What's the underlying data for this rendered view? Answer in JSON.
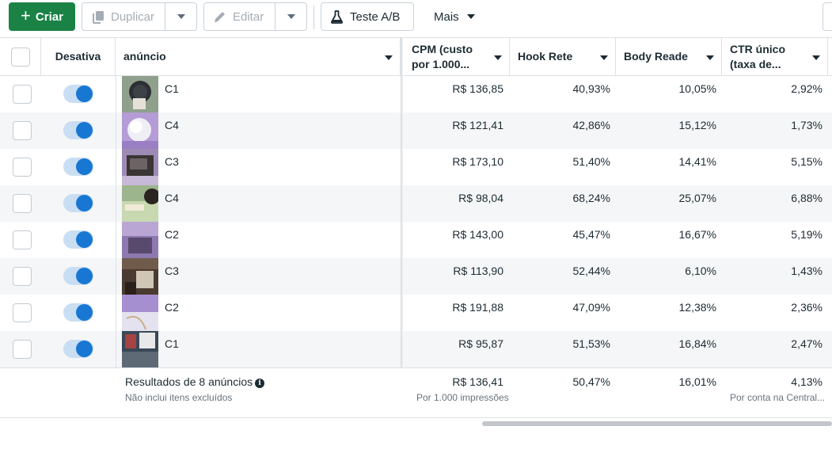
{
  "toolbar": {
    "create_label": "Criar",
    "duplicate_label": "Duplicar",
    "edit_label": "Editar",
    "ab_test_label": "Teste A/B",
    "more_label": "Mais"
  },
  "table": {
    "headers": {
      "toggle": "Desativa",
      "ad": "anúncio",
      "cpm_line1": "CPM (custo",
      "cpm_line2": "por 1.000...",
      "hook": "Hook Rete",
      "body": "Body Reade",
      "ctr_line1": "CTR único",
      "ctr_line2": "(taxa de..."
    },
    "rows": [
      {
        "name": "C1",
        "cpm": "R$ 136,85",
        "hook": "40,93%",
        "body": "10,05%",
        "ctr": "2,92%",
        "active": true
      },
      {
        "name": "C4",
        "cpm": "R$ 121,41",
        "hook": "42,86%",
        "body": "15,12%",
        "ctr": "1,73%",
        "active": true
      },
      {
        "name": "C3",
        "cpm": "R$ 173,10",
        "hook": "51,40%",
        "body": "14,41%",
        "ctr": "5,15%",
        "active": true
      },
      {
        "name": "C4",
        "cpm": "R$ 98,04",
        "hook": "68,24%",
        "body": "25,07%",
        "ctr": "6,88%",
        "active": true
      },
      {
        "name": "C2",
        "cpm": "R$ 143,00",
        "hook": "45,47%",
        "body": "16,67%",
        "ctr": "5,19%",
        "active": true
      },
      {
        "name": "C3",
        "cpm": "R$ 113,90",
        "hook": "52,44%",
        "body": "6,10%",
        "ctr": "1,43%",
        "active": true
      },
      {
        "name": "C2",
        "cpm": "R$ 191,88",
        "hook": "47,09%",
        "body": "12,38%",
        "ctr": "2,36%",
        "active": true
      },
      {
        "name": "C1",
        "cpm": "R$ 95,87",
        "hook": "51,53%",
        "body": "16,84%",
        "ctr": "2,47%",
        "active": true
      }
    ],
    "summary": {
      "results": "Resultados de 8 anúncios",
      "results_note": "Não inclui itens excluídos",
      "cpm": "R$ 136,41",
      "cpm_note": "Por 1.000 impressões",
      "hook": "50,47%",
      "body": "16,01%",
      "ctr": "4,13%",
      "ctr_note": "Por conta na Central..."
    }
  },
  "colors": {
    "primary_green": "#1a8245",
    "toggle_blue": "#1877d2",
    "toggle_track": "#c9def3",
    "row_alt": "#f5f6f7"
  },
  "icons": {
    "create": "plus-icon",
    "duplicate": "duplicate-icon",
    "edit": "pencil-icon",
    "ab_test": "flask-icon",
    "dropdown": "caret-down-icon",
    "info": "info-icon"
  }
}
